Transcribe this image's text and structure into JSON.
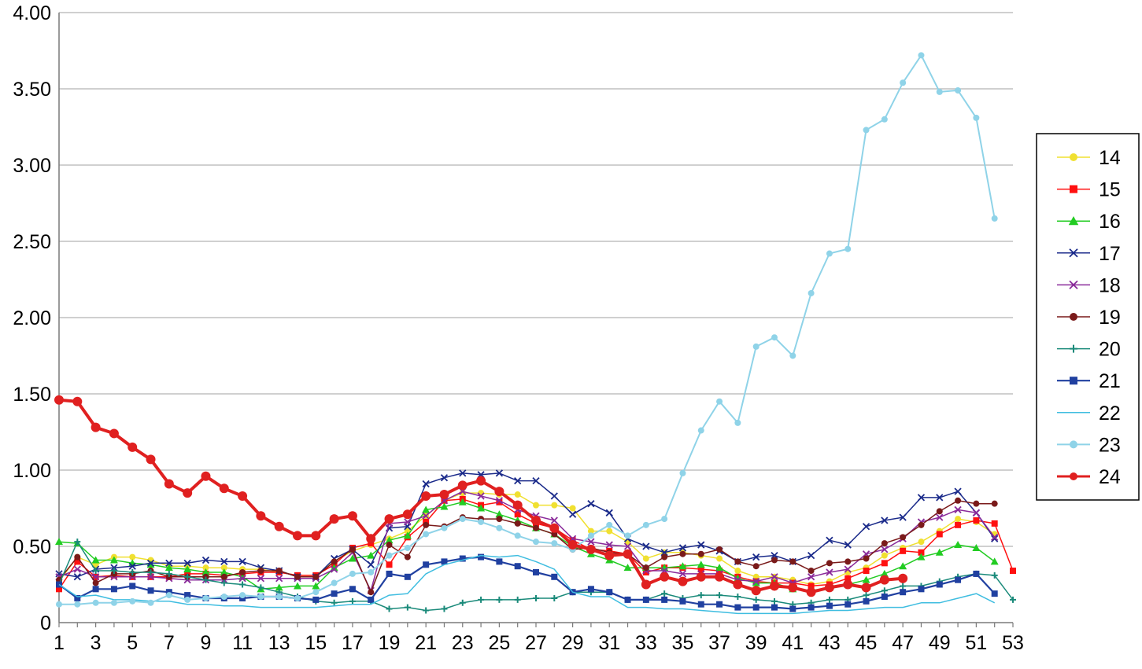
{
  "chart_data": {
    "type": "line",
    "title": "",
    "xlabel": "",
    "ylabel": "",
    "x": [
      1,
      2,
      3,
      4,
      5,
      6,
      7,
      8,
      9,
      10,
      11,
      12,
      13,
      14,
      15,
      16,
      17,
      18,
      19,
      20,
      21,
      22,
      23,
      24,
      25,
      26,
      27,
      28,
      29,
      30,
      31,
      32,
      33,
      34,
      35,
      36,
      37,
      38,
      39,
      40,
      41,
      42,
      43,
      44,
      45,
      46,
      47,
      48,
      49,
      50,
      51,
      52,
      53
    ],
    "xlim": [
      1,
      53
    ],
    "ylim": [
      0,
      4
    ],
    "grid": true,
    "legend_position": "right",
    "x_tick_labels": [
      "1",
      "3",
      "5",
      "7",
      "9",
      "11",
      "13",
      "15",
      "17",
      "19",
      "21",
      "23",
      "25",
      "27",
      "29",
      "31",
      "33",
      "35",
      "37",
      "39",
      "41",
      "43",
      "45",
      "47",
      "49",
      "51",
      "53"
    ],
    "y_tick_labels": [
      "0",
      "0.50",
      "1.00",
      "1.50",
      "2.00",
      "2.50",
      "3.00",
      "3.50",
      "4.00"
    ],
    "y_tick_values": [
      0,
      0.5,
      1,
      1.5,
      2,
      2.5,
      3,
      3.5,
      4
    ],
    "series": [
      {
        "name": "14",
        "color": "#f0e030",
        "marker": "circle",
        "width": 1.5,
        "values": [
          0.27,
          0.43,
          0.38,
          0.43,
          0.43,
          0.41,
          0.37,
          0.37,
          0.36,
          0.36,
          0.35,
          0.35,
          0.33,
          0.31,
          0.31,
          0.4,
          0.47,
          0.51,
          0.55,
          0.6,
          0.7,
          0.8,
          0.85,
          0.85,
          0.84,
          0.84,
          0.77,
          0.77,
          0.75,
          0.6,
          0.6,
          0.53,
          0.42,
          0.46,
          0.46,
          0.44,
          0.42,
          0.34,
          0.3,
          0.3,
          0.28,
          0.25,
          0.27,
          0.33,
          0.36,
          0.44,
          0.49,
          0.53,
          0.6,
          0.68,
          0.66,
          0.58,
          null
        ]
      },
      {
        "name": "15",
        "color": "#ff1010",
        "marker": "square",
        "width": 1.5,
        "values": [
          0.22,
          0.4,
          0.3,
          0.31,
          0.3,
          0.3,
          0.3,
          0.32,
          0.32,
          0.31,
          0.32,
          0.33,
          0.33,
          0.31,
          0.31,
          0.38,
          0.49,
          0.52,
          0.38,
          0.56,
          0.66,
          0.8,
          0.81,
          0.77,
          0.79,
          0.71,
          0.65,
          0.62,
          0.54,
          0.48,
          0.47,
          0.45,
          0.33,
          0.36,
          0.36,
          0.35,
          0.34,
          0.3,
          0.27,
          0.26,
          0.26,
          0.24,
          0.25,
          0.29,
          0.34,
          0.39,
          0.47,
          0.46,
          0.58,
          0.64,
          0.67,
          0.65,
          0.34
        ]
      },
      {
        "name": "16",
        "color": "#22cc22",
        "marker": "triangle",
        "width": 1.5,
        "values": [
          0.53,
          0.52,
          0.41,
          0.41,
          0.39,
          0.38,
          0.36,
          0.35,
          0.33,
          0.33,
          0.3,
          0.22,
          0.23,
          0.24,
          0.24,
          0.36,
          0.42,
          0.44,
          0.54,
          0.57,
          0.74,
          0.76,
          0.79,
          0.75,
          0.71,
          0.67,
          0.62,
          0.58,
          0.5,
          0.45,
          0.41,
          0.36,
          0.36,
          0.36,
          0.37,
          0.38,
          0.36,
          0.29,
          0.26,
          0.26,
          0.22,
          0.21,
          0.23,
          0.25,
          0.28,
          0.32,
          0.37,
          0.43,
          0.46,
          0.51,
          0.49,
          0.4,
          null
        ]
      },
      {
        "name": "17",
        "color": "#1a2a8a",
        "marker": "x",
        "width": 1.5,
        "values": [
          0.32,
          0.3,
          0.35,
          0.36,
          0.37,
          0.39,
          0.39,
          0.39,
          0.41,
          0.4,
          0.4,
          0.36,
          0.34,
          0.3,
          0.3,
          0.42,
          0.48,
          0.38,
          0.62,
          0.63,
          0.91,
          0.95,
          0.98,
          0.97,
          0.98,
          0.93,
          0.93,
          0.83,
          0.71,
          0.78,
          0.72,
          0.55,
          0.5,
          0.46,
          0.49,
          0.51,
          0.47,
          0.4,
          0.43,
          0.44,
          0.4,
          0.44,
          0.54,
          0.51,
          0.63,
          0.67,
          0.69,
          0.82,
          0.82,
          0.86,
          0.72,
          0.55,
          null
        ]
      },
      {
        "name": "18",
        "color": "#8a2a9a",
        "marker": "x",
        "width": 1.5,
        "values": [
          0.3,
          0.35,
          0.3,
          0.3,
          0.3,
          0.3,
          0.29,
          0.28,
          0.28,
          0.28,
          0.29,
          0.29,
          0.29,
          0.29,
          0.29,
          0.35,
          0.46,
          0.21,
          0.65,
          0.66,
          0.7,
          0.8,
          0.86,
          0.83,
          0.8,
          0.74,
          0.7,
          0.67,
          0.55,
          0.53,
          0.51,
          0.5,
          0.34,
          0.34,
          0.32,
          0.32,
          0.32,
          0.28,
          0.27,
          0.3,
          0.26,
          0.3,
          0.33,
          0.35,
          0.45,
          0.48,
          0.55,
          0.66,
          0.69,
          0.74,
          0.72,
          0.56,
          null
        ]
      },
      {
        "name": "19",
        "color": "#7a1a1a",
        "marker": "circle",
        "width": 1.5,
        "values": [
          0.28,
          0.43,
          0.26,
          0.32,
          0.32,
          0.34,
          0.3,
          0.3,
          0.3,
          0.3,
          0.33,
          0.34,
          0.34,
          0.3,
          0.3,
          0.4,
          0.48,
          0.2,
          0.51,
          0.43,
          0.64,
          0.63,
          0.69,
          0.68,
          0.68,
          0.65,
          0.62,
          0.58,
          0.48,
          0.49,
          0.46,
          0.45,
          0.36,
          0.43,
          0.45,
          0.45,
          0.48,
          0.4,
          0.37,
          0.41,
          0.4,
          0.34,
          0.39,
          0.4,
          0.42,
          0.52,
          0.56,
          0.64,
          0.73,
          0.8,
          0.78,
          0.78,
          null
        ]
      },
      {
        "name": "20",
        "color": "#1a8a7a",
        "marker": "plus",
        "width": 1.5,
        "values": [
          0.25,
          0.53,
          0.34,
          0.34,
          0.33,
          0.33,
          0.32,
          0.3,
          0.28,
          0.26,
          0.25,
          0.23,
          0.2,
          0.17,
          0.14,
          0.13,
          0.14,
          0.14,
          0.09,
          0.1,
          0.08,
          0.09,
          0.13,
          0.15,
          0.15,
          0.15,
          0.16,
          0.16,
          0.2,
          0.2,
          0.2,
          0.15,
          0.15,
          0.19,
          0.16,
          0.18,
          0.18,
          0.17,
          0.15,
          0.14,
          0.12,
          0.13,
          0.15,
          0.15,
          0.18,
          0.21,
          0.24,
          0.24,
          0.27,
          0.3,
          0.32,
          0.31,
          0.15
        ]
      },
      {
        "name": "21",
        "color": "#2040a0",
        "marker": "square",
        "width": 2.2,
        "values": [
          0.25,
          0.16,
          0.22,
          0.22,
          0.24,
          0.21,
          0.2,
          0.18,
          0.16,
          0.16,
          0.16,
          0.17,
          0.17,
          0.16,
          0.15,
          0.19,
          0.22,
          0.15,
          0.32,
          0.3,
          0.38,
          0.4,
          0.42,
          0.43,
          0.4,
          0.37,
          0.33,
          0.3,
          0.2,
          0.22,
          0.2,
          0.15,
          0.15,
          0.15,
          0.14,
          0.12,
          0.12,
          0.1,
          0.1,
          0.1,
          0.09,
          0.1,
          0.11,
          0.12,
          0.14,
          0.17,
          0.2,
          0.22,
          0.25,
          0.28,
          0.32,
          0.19,
          null
        ]
      },
      {
        "name": "22",
        "color": "#3fbde0",
        "marker": "none",
        "width": 1.5,
        "values": [
          0.25,
          0.17,
          0.18,
          0.15,
          0.15,
          0.14,
          0.14,
          0.12,
          0.12,
          0.11,
          0.11,
          0.1,
          0.1,
          0.1,
          0.1,
          0.11,
          0.12,
          0.12,
          0.18,
          0.19,
          0.32,
          0.38,
          0.41,
          0.44,
          0.43,
          0.44,
          0.4,
          0.35,
          0.2,
          0.17,
          0.17,
          0.1,
          0.1,
          0.09,
          0.09,
          0.08,
          0.07,
          0.06,
          0.06,
          0.06,
          0.06,
          0.07,
          0.08,
          0.08,
          0.09,
          0.1,
          0.1,
          0.13,
          0.13,
          0.16,
          0.19,
          0.13,
          null
        ]
      },
      {
        "name": "23",
        "color": "#8fd3e8",
        "marker": "circle",
        "width": 2.0,
        "values": [
          0.12,
          0.12,
          0.13,
          0.13,
          0.14,
          0.13,
          0.18,
          0.15,
          0.16,
          0.17,
          0.18,
          0.17,
          0.17,
          0.16,
          0.2,
          0.26,
          0.32,
          0.33,
          0.44,
          0.49,
          0.58,
          0.62,
          0.68,
          0.66,
          0.62,
          0.57,
          0.53,
          0.52,
          0.48,
          0.57,
          0.64,
          0.57,
          0.64,
          0.68,
          0.98,
          1.26,
          1.45,
          1.31,
          1.81,
          1.87,
          1.75,
          2.16,
          2.42,
          2.45,
          3.23,
          3.3,
          3.54,
          3.72,
          3.48,
          3.49,
          3.31,
          2.65,
          null
        ]
      },
      {
        "name": "24",
        "color": "#e02020",
        "marker": "circle",
        "width": 4.0,
        "values": [
          1.46,
          1.45,
          1.28,
          1.24,
          1.15,
          1.07,
          0.91,
          0.85,
          0.96,
          0.88,
          0.83,
          0.7,
          0.63,
          0.57,
          0.57,
          0.68,
          0.7,
          0.55,
          0.68,
          0.71,
          0.83,
          0.84,
          0.9,
          0.93,
          0.86,
          0.77,
          0.67,
          0.62,
          0.51,
          0.48,
          0.44,
          0.45,
          0.25,
          0.3,
          0.27,
          0.3,
          0.3,
          0.25,
          0.21,
          0.24,
          0.23,
          0.2,
          0.23,
          0.25,
          0.23,
          0.28,
          0.29,
          null,
          null,
          null,
          null,
          null,
          null
        ]
      }
    ]
  }
}
